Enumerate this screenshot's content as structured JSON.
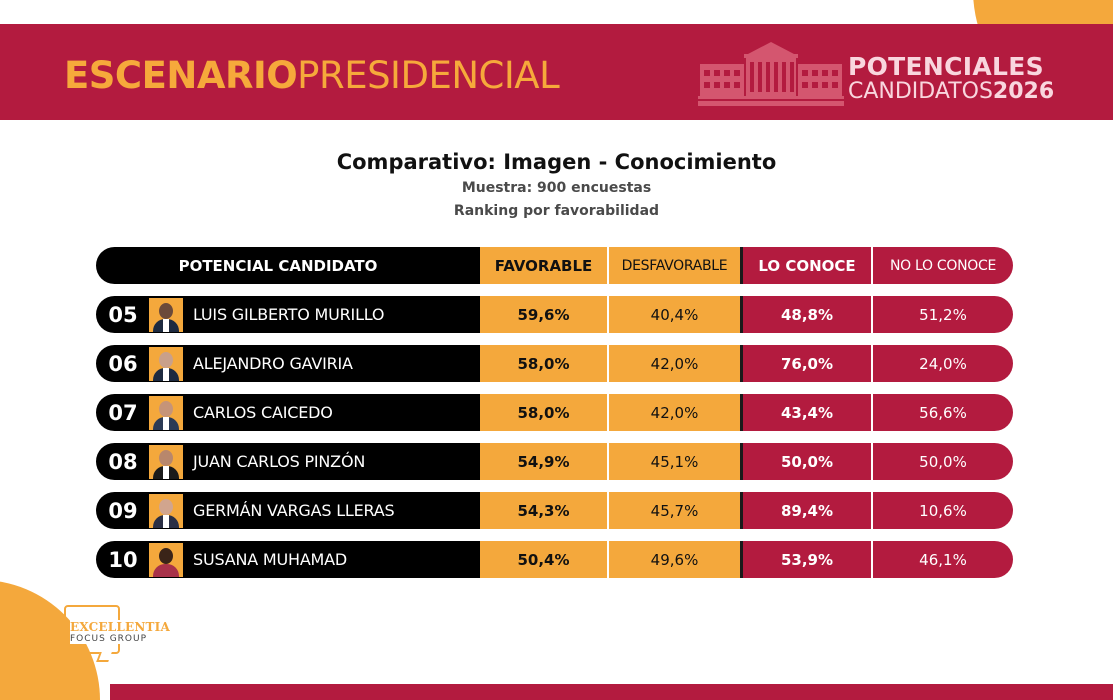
{
  "header": {
    "title_bold": "ESCENARIO",
    "title_light": "PRESIDENCIAL",
    "badge_line1": "POTENCIALES",
    "badge_line2": "CANDIDATOS",
    "badge_year": "2026"
  },
  "heading": {
    "title": "Comparativo: Imagen - Conocimiento",
    "sample": "Muestra: 900 encuestas",
    "ranking": "Ranking por favorabilidad"
  },
  "table": {
    "headers": {
      "candidate": "POTENCIAL CANDIDATO",
      "favorable": "FAVORABLE",
      "unfavorable": "DESFAVORABLE",
      "known": "LO CONOCE",
      "unknown": "NO LO CONOCE"
    },
    "rows": [
      {
        "rank": "05",
        "name": "LUIS GILBERTO MURILLO",
        "favorable": "59,6%",
        "unfavorable": "40,4%",
        "known": "48,8%",
        "unknown": "51,2%"
      },
      {
        "rank": "06",
        "name": "ALEJANDRO GAVIRIA",
        "favorable": "58,0%",
        "unfavorable": "42,0%",
        "known": "76,0%",
        "unknown": "24,0%"
      },
      {
        "rank": "07",
        "name": "CARLOS CAICEDO",
        "favorable": "58,0%",
        "unfavorable": "42,0%",
        "known": "43,4%",
        "unknown": "56,6%"
      },
      {
        "rank": "08",
        "name": "JUAN CARLOS PINZÓN",
        "favorable": "54,9%",
        "unfavorable": "45,1%",
        "known": "50,0%",
        "unknown": "50,0%"
      },
      {
        "rank": "09",
        "name": "GERMÁN VARGAS LLERAS",
        "favorable": "54,3%",
        "unfavorable": "45,7%",
        "known": "89,4%",
        "unknown": "10,6%"
      },
      {
        "rank": "10",
        "name": "SUSANA MUHAMAD",
        "favorable": "50,4%",
        "unfavorable": "49,6%",
        "known": "53,9%",
        "unknown": "46,1%"
      }
    ]
  },
  "logo": {
    "line1": "EXCELLENTIA",
    "line2": "FOCUS GROUP"
  },
  "colors": {
    "crimson": "#b31b3f",
    "orange": "#f4a83c",
    "black": "#000000"
  }
}
